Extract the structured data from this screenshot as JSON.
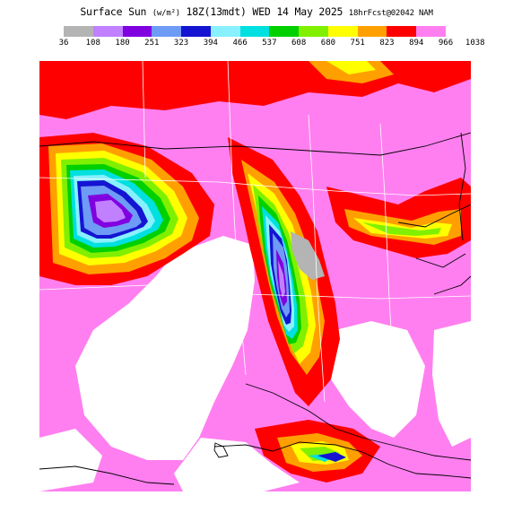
{
  "header": {
    "title_main": "Surface Sun",
    "title_units": "(w/m²)",
    "title_valid": "18Z(13mdt) WED 14 May 2025",
    "title_run": "18hrFcst@02042 NAM"
  },
  "legend": {
    "ticks": [
      "36",
      "108",
      "180",
      "251",
      "323",
      "394",
      "466",
      "537",
      "608",
      "680",
      "751",
      "823",
      "894",
      "966",
      "1038"
    ],
    "colors": [
      "#b4b4b4",
      "#c080ff",
      "#8000e0",
      "#6e9bf5",
      "#1414d2",
      "#88f0ff",
      "#00e0e0",
      "#00d000",
      "#80f000",
      "#ffff00",
      "#ffa000",
      "#ff0000",
      "#ff7ff0"
    ]
  },
  "map": {
    "background_color": "#ff7ff0",
    "clear_sky_color": "#ffffff",
    "border_color": "#000000",
    "state_line_color": "#ffffff"
  }
}
